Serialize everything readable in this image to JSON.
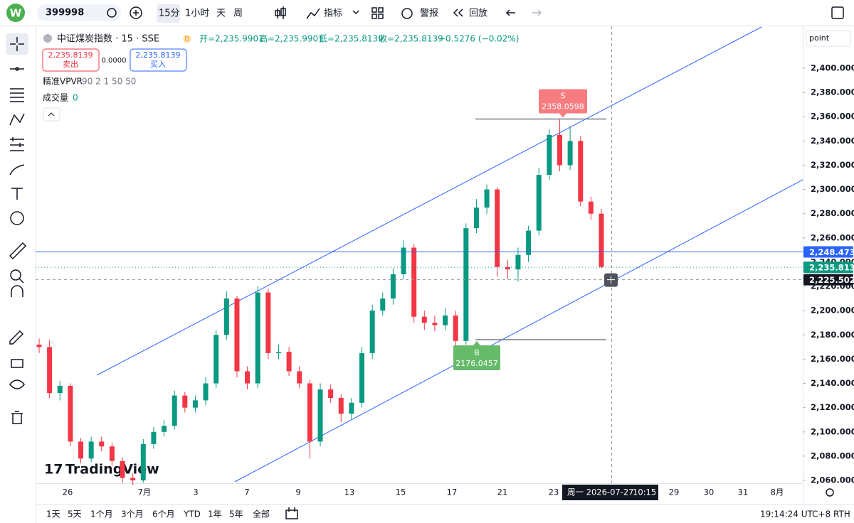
{
  "toolbar": {
    "symbol": "399998",
    "intervals": [
      "15分",
      "1小时",
      "天",
      "周"
    ],
    "indicators": "指标",
    "alert": "警报",
    "replay": "回放"
  },
  "legend": {
    "title": "中证煤炭指数 · 15 · SSE",
    "badge": "D",
    "ohlc": [
      "开=2,235.9901",
      "高=2,235.9901",
      "低=2,235.8139",
      "收=2,235.8139",
      "−0.5276 (−0.02%)"
    ],
    "sell_price": "2,235.8139",
    "sell": "卖出",
    "spread": "0.0000",
    "buy_price": "2,235.8139",
    "buy": "买入",
    "indicator_1": "精准VPVR",
    "indicator_1_params": "90 2 1 50 50",
    "indicator_2": "成交量",
    "indicator_2_value": "0"
  },
  "chart_data": {
    "type": "candlestick",
    "scale_mode": "point",
    "up_color": "#089981",
    "down_color": "#f23645",
    "ylim": [
      2052,
      2420
    ],
    "yticks": [
      {
        "value": 2400,
        "label": "2,400.0000"
      },
      {
        "value": 2380,
        "label": "2,380.0000"
      },
      {
        "value": 2360,
        "label": "2,360.0000"
      },
      {
        "value": 2340,
        "label": "2,340.0000"
      },
      {
        "value": 2320,
        "label": "2,320.0000"
      },
      {
        "value": 2300,
        "label": "2,300.0000"
      },
      {
        "value": 2280,
        "label": "2,280.0000"
      },
      {
        "value": 2260,
        "label": "2,260.0000"
      },
      {
        "value": 2240,
        "label": "2,240.0000"
      },
      {
        "value": 2220,
        "label": "2,220.0000"
      },
      {
        "value": 2200,
        "label": "2,200.0000"
      },
      {
        "value": 2180,
        "label": "2,180.0000"
      },
      {
        "value": 2160,
        "label": "2,160.0000"
      },
      {
        "value": 2140,
        "label": "2,140.0000"
      },
      {
        "value": 2120,
        "label": "2,120.0000"
      },
      {
        "value": 2100,
        "label": "2,100.0000"
      },
      {
        "value": 2080,
        "label": "2,080.0000"
      },
      {
        "value": 2060,
        "label": "2,060.0000"
      }
    ],
    "x_tick_labels": [
      "26",
      "7月",
      "3",
      "7",
      "9",
      "13",
      "15",
      "17",
      "21",
      "23",
      "29",
      "30",
      "31",
      "8月"
    ],
    "open": [
      2172,
      2170,
      2132,
      2138,
      2092,
      2078,
      2092,
      2088,
      2076,
      2062,
      2060,
      2090,
      2100,
      2105,
      2130,
      2120,
      2126,
      2140,
      2180,
      2210,
      2150,
      2140,
      2215,
      2165,
      2166,
      2150,
      2140,
      2092,
      2135,
      2128,
      2115,
      2124,
      2165,
      2200,
      2210,
      2230,
      2252,
      2195,
      2190,
      2188,
      2196,
      2175,
      2268,
      2285,
      2300,
      2236,
      2234,
      2246,
      2266,
      2312,
      2345,
      2320,
      2340,
      2290,
      2280
    ],
    "high": [
      2177,
      2176,
      2142,
      2140,
      2095,
      2096,
      2096,
      2091,
      2079,
      2066,
      2094,
      2104,
      2110,
      2134,
      2133,
      2130,
      2145,
      2184,
      2216,
      2212,
      2154,
      2220,
      2218,
      2172,
      2170,
      2154,
      2143,
      2140,
      2139,
      2131,
      2128,
      2170,
      2205,
      2215,
      2235,
      2258,
      2255,
      2200,
      2196,
      2202,
      2200,
      2272,
      2292,
      2304,
      2302,
      2242,
      2252,
      2270,
      2318,
      2350,
      2358,
      2352,
      2344,
      2294,
      2284
    ],
    "low": [
      2165,
      2128,
      2126,
      2088,
      2074,
      2075,
      2084,
      2072,
      2058,
      2056,
      2058,
      2086,
      2096,
      2102,
      2116,
      2116,
      2122,
      2136,
      2176,
      2145,
      2135,
      2136,
      2160,
      2160,
      2146,
      2136,
      2078,
      2088,
      2124,
      2108,
      2110,
      2120,
      2160,
      2196,
      2205,
      2226,
      2190,
      2184,
      2183,
      2184,
      2170,
      2172,
      2264,
      2280,
      2228,
      2226,
      2224,
      2240,
      2262,
      2308,
      2315,
      2316,
      2286,
      2275,
      2235
    ],
    "close": [
      2170,
      2132,
      2138,
      2092,
      2078,
      2092,
      2088,
      2076,
      2062,
      2060,
      2090,
      2100,
      2105,
      2130,
      2120,
      2126,
      2140,
      2180,
      2210,
      2150,
      2140,
      2215,
      2165,
      2166,
      2150,
      2140,
      2092,
      2135,
      2128,
      2115,
      2124,
      2165,
      2200,
      2210,
      2230,
      2252,
      2195,
      2190,
      2188,
      2196,
      2175,
      2268,
      2285,
      2300,
      2236,
      2234,
      2246,
      2266,
      2312,
      2345,
      2320,
      2340,
      2290,
      2280,
      2236
    ],
    "horizontal_line": {
      "value": 2248.4731,
      "label": "2,248.4731"
    },
    "last_price": {
      "value": 2235.8139,
      "label": "2,235.8139"
    },
    "crosshair_price": {
      "value": 2225.5022,
      "label": "2,225.5022"
    },
    "crosshair_time": "周一 2026-07-27",
    "crosshair_clock": "10:15",
    "sell_marker": {
      "label": "S",
      "value": 2358.0598
    },
    "buy_marker": {
      "label": "B",
      "value": 2176.0457
    },
    "watermark": "TradingView"
  },
  "bottom_bar": {
    "ranges": [
      "1天",
      "5天",
      "1个月",
      "3个月",
      "6个月",
      "YTD",
      "1年",
      "5年",
      "全部"
    ],
    "clock": "19:14:24 UTC+8",
    "session": "RTH"
  }
}
